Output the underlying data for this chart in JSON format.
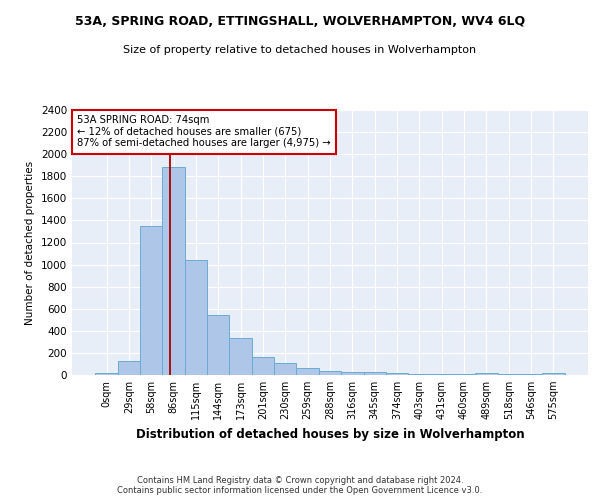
{
  "title": "53A, SPRING ROAD, ETTINGSHALL, WOLVERHAMPTON, WV4 6LQ",
  "subtitle": "Size of property relative to detached houses in Wolverhampton",
  "xlabel": "Distribution of detached houses by size in Wolverhampton",
  "ylabel": "Number of detached properties",
  "bar_color": "#aec6e8",
  "bar_edge_color": "#6aaad4",
  "background_color": "#e8eef8",
  "grid_color": "#ffffff",
  "annotation_text": "53A SPRING ROAD: 74sqm\n← 12% of detached houses are smaller (675)\n87% of semi-detached houses are larger (4,975) →",
  "annotation_box_color": "#cc0000",
  "vline_x": 2.85,
  "vline_color": "#aa0000",
  "categories": [
    "0sqm",
    "29sqm",
    "58sqm",
    "86sqm",
    "115sqm",
    "144sqm",
    "173sqm",
    "201sqm",
    "230sqm",
    "259sqm",
    "288sqm",
    "316sqm",
    "345sqm",
    "374sqm",
    "403sqm",
    "431sqm",
    "460sqm",
    "489sqm",
    "518sqm",
    "546sqm",
    "575sqm"
  ],
  "values": [
    15,
    125,
    1350,
    1880,
    1040,
    540,
    335,
    165,
    110,
    60,
    40,
    30,
    30,
    20,
    5,
    5,
    5,
    20,
    5,
    5,
    15
  ],
  "ylim": [
    0,
    2400
  ],
  "yticks": [
    0,
    200,
    400,
    600,
    800,
    1000,
    1200,
    1400,
    1600,
    1800,
    2000,
    2200,
    2400
  ],
  "footer_line1": "Contains HM Land Registry data © Crown copyright and database right 2024.",
  "footer_line2": "Contains public sector information licensed under the Open Government Licence v3.0."
}
